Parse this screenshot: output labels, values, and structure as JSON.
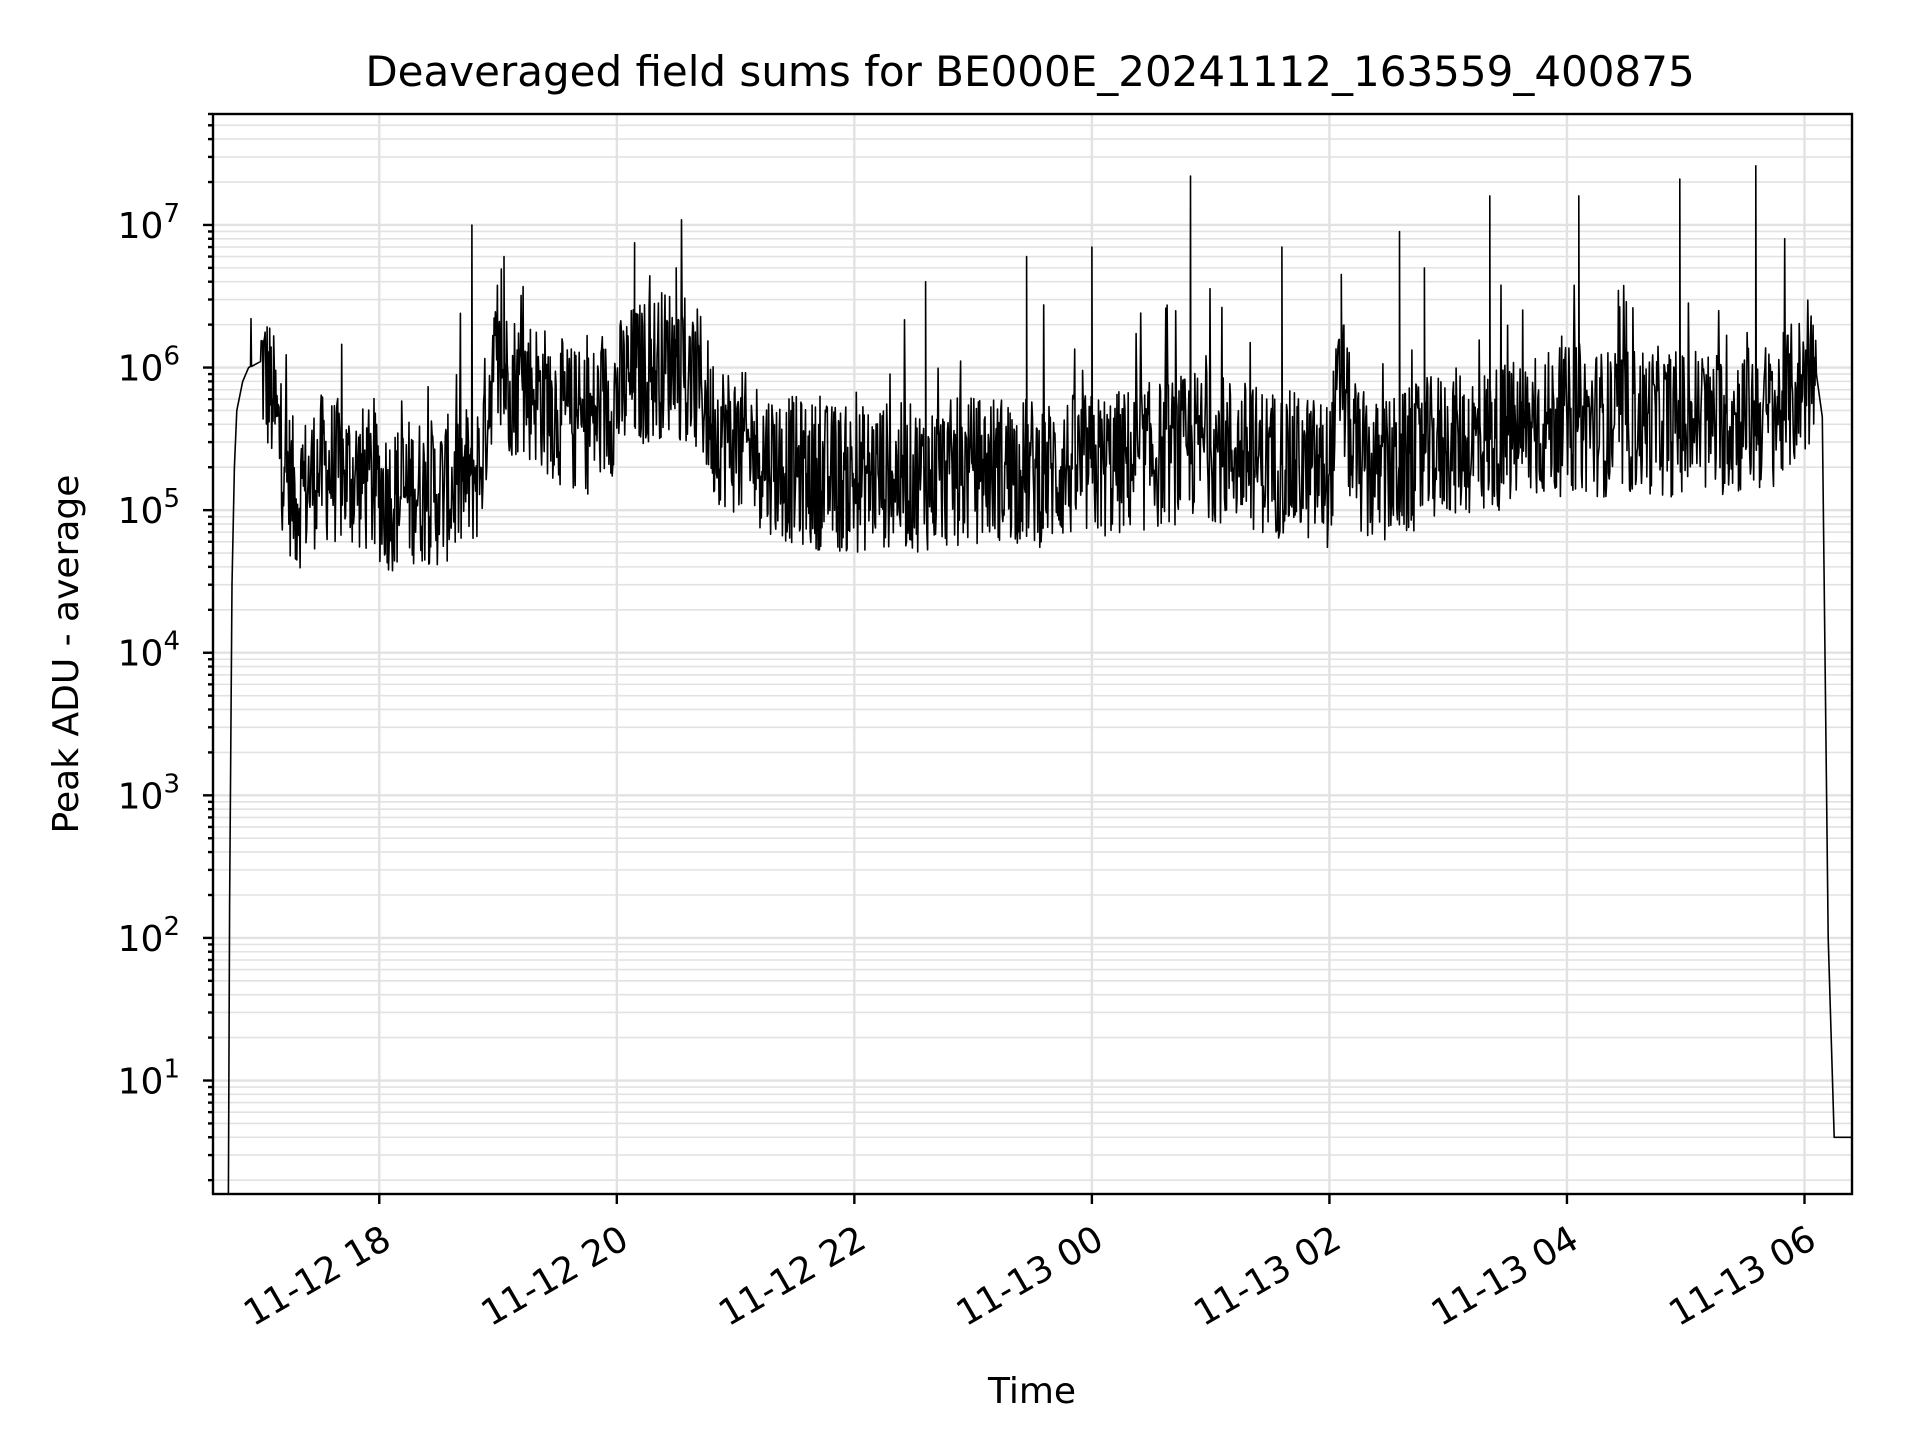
{
  "chart_data": {
    "type": "line",
    "title": "Deaveraged field sums for BE000E_20241112_163559_400875",
    "xlabel": "Time",
    "ylabel": "Peak ADU - average",
    "yscale": "log",
    "grid": true,
    "x_tick_labels": [
      "11-12 18",
      "11-12 20",
      "11-12 22",
      "11-13 00",
      "11-13 02",
      "11-13 04",
      "11-13 06"
    ],
    "x_tick_hours": [
      18,
      20,
      22,
      24,
      26,
      28,
      30
    ],
    "xlim_hours": [
      16.6,
      30.4
    ],
    "y_tick_exponents": [
      1,
      2,
      3,
      4,
      5,
      6,
      7
    ],
    "y_tick_base": "10",
    "ylim": [
      1.6,
      60000000
    ],
    "line_color": "#000000",
    "series": [
      {
        "points_hours": [
          16.73,
          16.74,
          16.76,
          16.78,
          16.8,
          16.85,
          16.9,
          17.0,
          17.1,
          17.2,
          17.3,
          17.4,
          17.5,
          17.7,
          17.9,
          18.1,
          18.3,
          18.5,
          18.7,
          18.85,
          18.95,
          19.1,
          19.3,
          19.5,
          19.7,
          19.9,
          20.1,
          20.3,
          20.5,
          20.6,
          20.7,
          20.8,
          21.0,
          21.2,
          21.4,
          21.6,
          21.8,
          22.0,
          22.2,
          22.4,
          22.6,
          22.8,
          23.0,
          23.2,
          23.4,
          23.6,
          23.8,
          24.0,
          24.2,
          24.4,
          24.6,
          24.8,
          24.9,
          25.0,
          25.2,
          25.4,
          25.6,
          25.8,
          26.0,
          26.1,
          26.2,
          26.3,
          26.4,
          26.6,
          26.8,
          27.0,
          27.2,
          27.4,
          27.6,
          27.8,
          28.0,
          28.1,
          28.2,
          28.4,
          28.6,
          28.8,
          29.0,
          29.1,
          29.2,
          29.4,
          29.5,
          29.6,
          29.8,
          30.0,
          30.1,
          30.15,
          30.2,
          30.25,
          30.3,
          30.35,
          30.4
        ],
        "points_values": [
          1.6,
          170,
          30000,
          200000,
          500000,
          800000,
          1000000,
          1100000,
          600000,
          200000,
          120000,
          150000,
          200000,
          180000,
          160000,
          120000,
          140000,
          130000,
          160000,
          200000,
          1000000,
          800000,
          700000,
          500000,
          400000,
          500000,
          800000,
          1000000,
          1200000,
          700000,
          800000,
          400000,
          300000,
          250000,
          200000,
          180000,
          170000,
          160000,
          180000,
          170000,
          170000,
          180000,
          190000,
          200000,
          190000,
          180000,
          200000,
          200000,
          210000,
          230000,
          250000,
          270000,
          300000,
          280000,
          260000,
          230000,
          210000,
          200000,
          180000,
          900000,
          250000,
          200000,
          180000,
          200000,
          250000,
          300000,
          300000,
          320000,
          350000,
          400000,
          420000,
          450000,
          420000,
          400000,
          430000,
          420000,
          400000,
          450000,
          400000,
          420000,
          430000,
          440000,
          500000,
          800000,
          900000,
          450000,
          100,
          4,
          4,
          4,
          4
        ],
        "spikes_hours": [
          16.92,
          18.78,
          19.05,
          20.15,
          20.5,
          22.6,
          23.45,
          24.0,
          24.83,
          25.6,
          26.1,
          26.59,
          26.8,
          27.35,
          28.1,
          28.95,
          29.59
        ],
        "spikes_values": [
          2200000,
          10000000,
          6000000,
          7500000,
          5000000,
          4000000,
          6000000,
          7000000,
          22000000,
          7000000,
          4500000,
          9000000,
          5000000,
          16000000,
          16000000,
          21000000,
          26000000
        ]
      }
    ]
  }
}
